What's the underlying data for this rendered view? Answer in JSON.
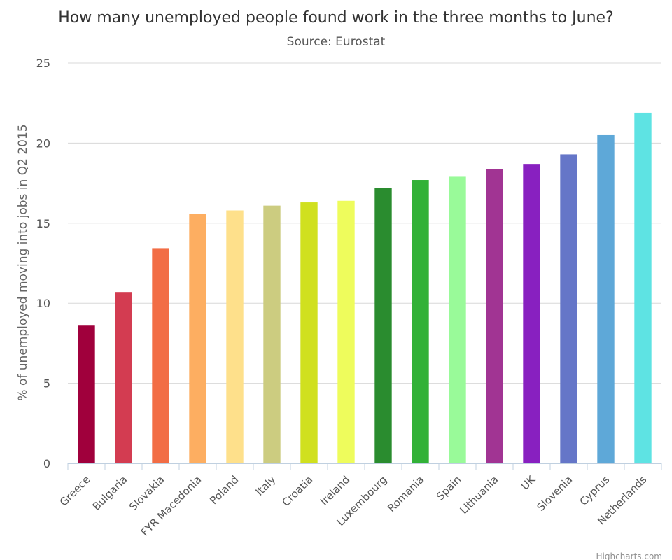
{
  "chart_data": {
    "type": "bar",
    "title": "How many unemployed people found work in the three months to June?",
    "subtitle": "Source: Eurostat",
    "xlabel": "",
    "ylabel": "% of unemployed moving into jobs in Q2 2015",
    "ylim": [
      0,
      25
    ],
    "yticks": [
      "0",
      "5",
      "10",
      "15",
      "20",
      "25"
    ],
    "grid": true,
    "legend": "none",
    "categories": [
      "Greece",
      "Bulgaria",
      "Slovakia",
      "FYR Macedonia",
      "Poland",
      "Italy",
      "Croatia",
      "Ireland",
      "Luxembourg",
      "Romania",
      "Spain",
      "Lithuania",
      "UK",
      "Slovenia",
      "Cyprus",
      "Netherlands"
    ],
    "values": [
      8.6,
      10.7,
      13.4,
      15.6,
      15.8,
      16.1,
      16.3,
      16.4,
      17.2,
      17.7,
      17.9,
      18.4,
      18.7,
      19.3,
      20.5,
      21.9
    ],
    "colors": [
      "#a0003c",
      "#d33c51",
      "#f26d45",
      "#fdae61",
      "#fee08b",
      "#cccc80",
      "#d0e01f",
      "#eefc5c",
      "#2a8c2f",
      "#32b137",
      "#99fa99",
      "#a13493",
      "#8820c0",
      "#6576c8",
      "#5ea8d8",
      "#5ee3e3"
    ]
  },
  "credit": "Highcharts.com"
}
